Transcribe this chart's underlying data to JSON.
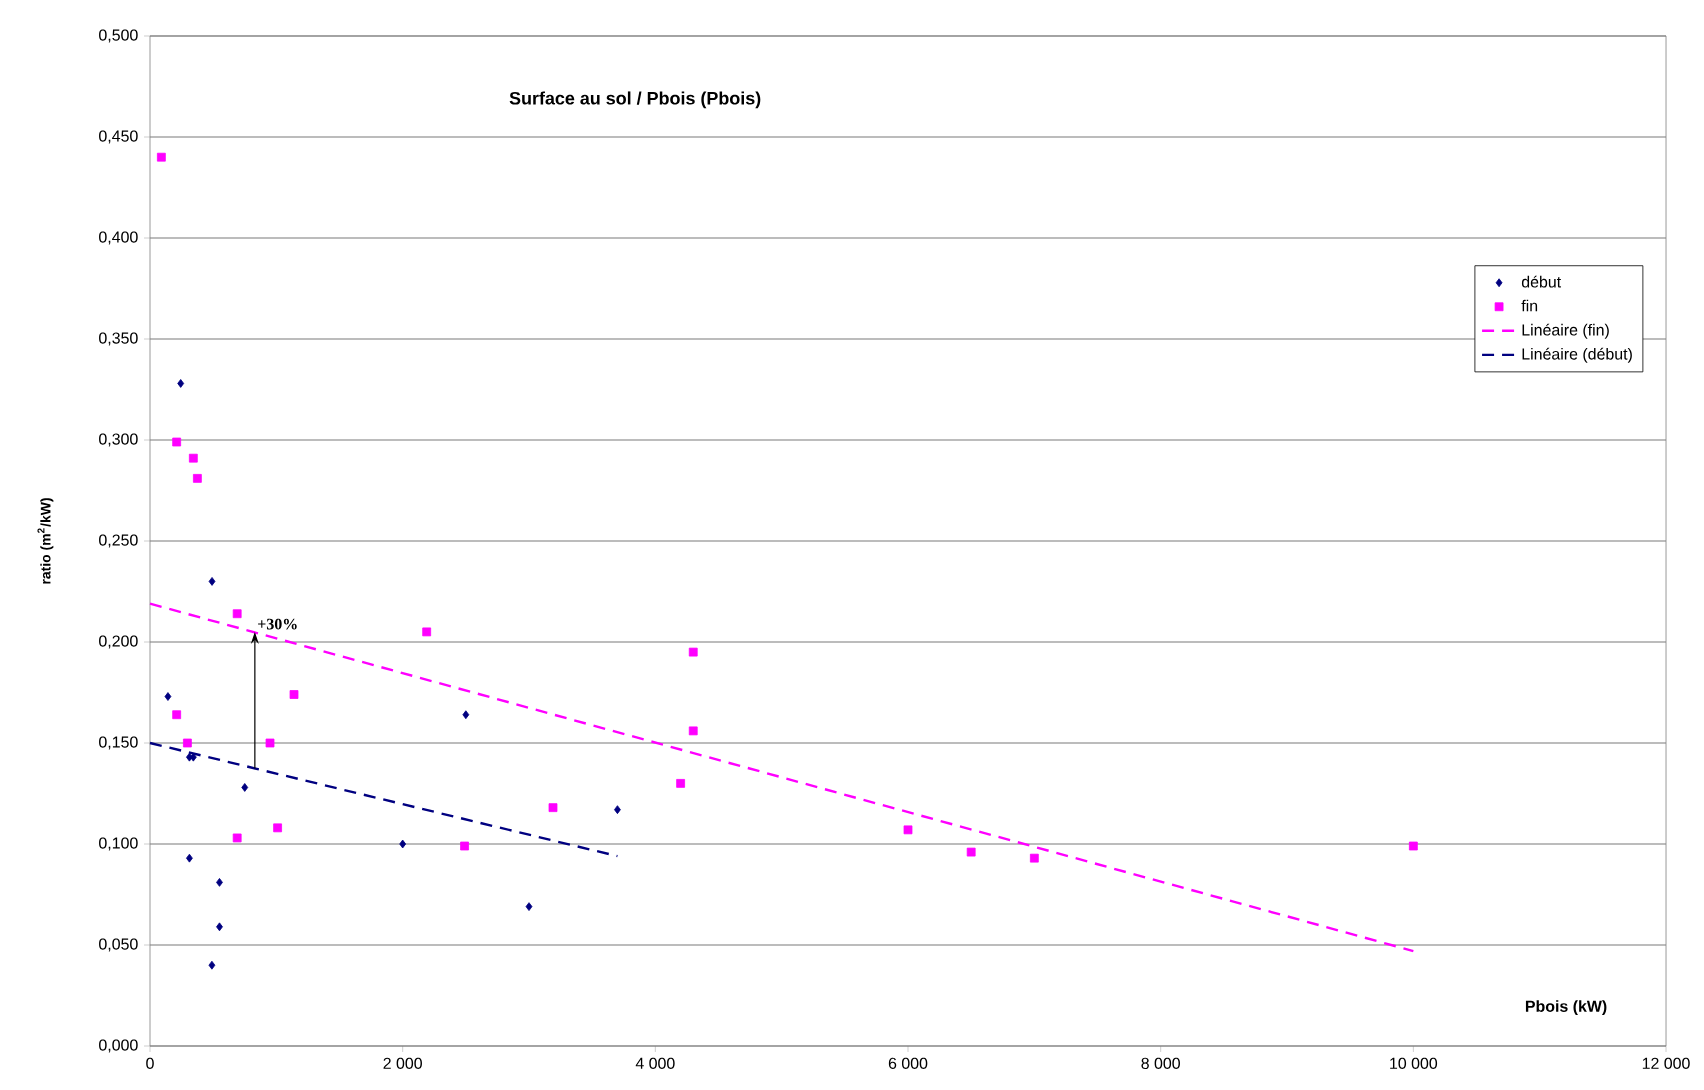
{
  "chart_data": {
    "type": "scatter",
    "title": "Surface au sol / Pbois (Pbois)",
    "xlabel": "Pbois (kW)",
    "ylabel": "ratio (m$^{2}$/kW)",
    "xlim": [
      0,
      12000
    ],
    "ylim": [
      0,
      0.5
    ],
    "xticks": [
      0,
      {
        "value": 2000,
        "label": "2 000"
      },
      {
        "value": 4000,
        "label": "4 000"
      },
      {
        "value": 6000,
        "label": "6 000"
      },
      {
        "value": 8000,
        "label": "8 000"
      },
      {
        "value": 10000,
        "label": "10 000"
      },
      {
        "value": 12000,
        "label": "12 000"
      }
    ],
    "yticks": [
      {
        "value": 0,
        "label": "0,000"
      },
      {
        "value": 0.05,
        "label": "0,050"
      },
      {
        "value": 0.1,
        "label": "0,100"
      },
      {
        "value": 0.15,
        "label": "0,150"
      },
      {
        "value": 0.2,
        "label": "0,200"
      },
      {
        "value": 0.25,
        "label": "0,250"
      },
      {
        "value": 0.3,
        "label": "0,300"
      },
      {
        "value": 0.35,
        "label": "0,350"
      },
      {
        "value": 0.4,
        "label": "0,400"
      },
      {
        "value": 0.45,
        "label": "0,450"
      },
      {
        "value": 0.5,
        "label": "0,500"
      }
    ],
    "grid": "y",
    "legend": "right",
    "series": [
      {
        "name": "début",
        "marker": "diamond",
        "color": "#000080",
        "x": [
          243,
          491,
          142,
          2500,
          312,
          343,
          750,
          2000,
          312,
          550,
          550,
          490,
          3000,
          3700
        ],
        "values": [
          0.328,
          0.23,
          0.173,
          0.164,
          0.143,
          0.143,
          0.128,
          0.1,
          0.093,
          0.081,
          0.059,
          0.04,
          0.069,
          0.117
        ]
      },
      {
        "name": "fin",
        "marker": "square",
        "color": "#ff00ff",
        "x": [
          90,
          211,
          343,
          375,
          690,
          2190,
          211,
          1140,
          296,
          950,
          690,
          1010,
          2490,
          4300,
          4300,
          4200,
          3190,
          6000,
          6500,
          7000,
          10000
        ],
        "values": [
          0.44,
          0.299,
          0.291,
          0.281,
          0.214,
          0.205,
          0.164,
          0.174,
          0.15,
          0.15,
          0.103,
          0.108,
          0.099,
          0.195,
          0.156,
          0.13,
          0.118,
          0.107,
          0.096,
          0.093,
          0.099
        ]
      },
      {
        "name": "Linéaire (fin)",
        "type": "line",
        "marker": "none",
        "line_style": "dashed",
        "color": "#ff00ff",
        "x": [
          0,
          10000
        ],
        "values": [
          0.219,
          0.047
        ]
      },
      {
        "name": "Linéaire (début)",
        "type": "line",
        "marker": "none",
        "line_style": "dashed",
        "color": "#000080",
        "x": [
          0,
          3700
        ],
        "values": [
          0.15,
          0.094
        ]
      }
    ],
    "annotations": [
      {
        "text": "+30%",
        "x": 830,
        "y": 0.205
      }
    ]
  }
}
